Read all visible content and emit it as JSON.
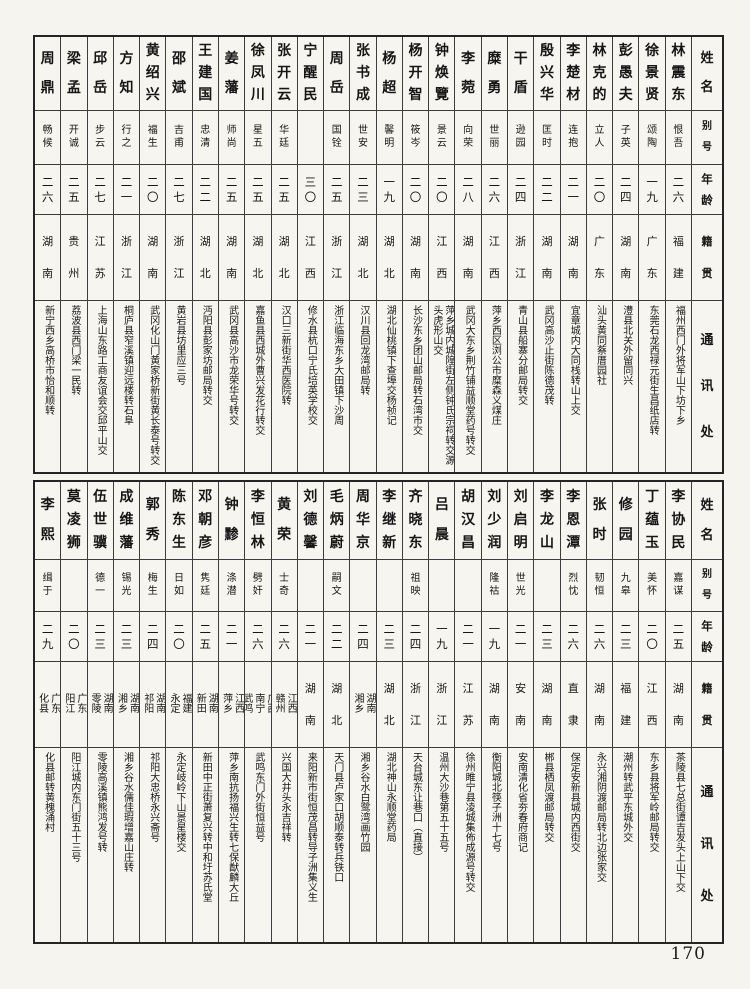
{
  "page_number": "170",
  "column_headers": [
    "姓名",
    "别号",
    "年龄",
    "籍贯",
    "通讯处"
  ],
  "tables": {
    "top": {
      "entries": [
        {
          "name": "林震东",
          "alias": "恨吾",
          "age": "二六",
          "native": "福建",
          "address": "福州西门外将军山下坊下乡"
        },
        {
          "name": "徐景贤",
          "alias": "颂陶",
          "age": "一九",
          "native": "广东",
          "address": "东莞石龙西禄元街生昌纸店转"
        },
        {
          "name": "彭愚夫",
          "alias": "子英",
          "age": "二四",
          "native": "湖南",
          "address": "澧县北关外留同兴"
        },
        {
          "name": "林克的",
          "alias": "立人",
          "age": "二〇",
          "native": "广东",
          "address": "汕头黄同蔡厝园社"
        },
        {
          "name": "李楚材",
          "alias": "连抱",
          "age": "二一",
          "native": "湖南",
          "address": "宜章城内大同栈转山上交"
        },
        {
          "name": "殷兴华",
          "alias": "匡时",
          "age": "二二",
          "native": "湖南",
          "address": "武冈高沙止街陈德茂转"
        },
        {
          "name": "干盾",
          "alias": "逊园",
          "age": "二四",
          "native": "浙江",
          "address": "青山县船寨分邮局转交"
        },
        {
          "name": "糜勇",
          "alias": "世丽",
          "age": "二六",
          "native": "江西",
          "address": "萍乡西区浏公市糜森义煤庄"
        },
        {
          "name": "李菀",
          "alias": "向荣",
          "age": "二八",
          "native": "湖南",
          "address": "武冈大东乡荆竹铺益顺堂药号转交"
        },
        {
          "name": "钟焕覽",
          "alias": "景云",
          "age": "二〇",
          "native": "江西",
          "address": "萍乡城内城隍街左侧钟氏宗祠转交源头虎形山交"
        },
        {
          "name": "杨开智",
          "alias": "筱岑",
          "age": "二〇",
          "native": "湖南",
          "address": "长沙东乡团山邮局转石湾市交"
        },
        {
          "name": "杨超",
          "alias": "馨明",
          "age": "一九",
          "native": "湖北",
          "address": "湖北仙桃镇下查埠交杨祯记"
        },
        {
          "name": "张书成",
          "alias": "世安",
          "age": "二三",
          "native": "湖北",
          "address": "汉川县回龙湾邮局转"
        },
        {
          "name": "周岳",
          "alias": "国铨",
          "age": "二五",
          "native": "浙江",
          "address": "浙江临海东乡大田镇下沙周"
        },
        {
          "name": "宁醒民",
          "alias": "",
          "age": "三〇",
          "native": "江西",
          "address": "修水县杭口宁氏培英学校交"
        },
        {
          "name": "张开云",
          "alias": "华廷",
          "age": "二五",
          "native": "湖北",
          "address": "汉口三新街华西医院转"
        },
        {
          "name": "徐凤川",
          "alias": "星五",
          "age": "二五",
          "native": "湖北",
          "address": "嘉鱼县西城外曹兴发花行转交"
        },
        {
          "name": "姜藩",
          "alias": "师尚",
          "age": "二五",
          "native": "湖南",
          "address": "武冈县高沙市龙荣华号转交"
        },
        {
          "name": "王建国",
          "alias": "忠清",
          "age": "二二",
          "native": "湖北",
          "address": "沔阳县彭家坊邮局转交"
        },
        {
          "name": "邵斌",
          "alias": "吉甫",
          "age": "二七",
          "native": "浙江",
          "address": "黄岩县坊里应三号"
        },
        {
          "name": "黄绍兴",
          "alias": "福生",
          "age": "二〇",
          "native": "湖南",
          "address": "武冈化山门黄家桥新街黄长泰号转交"
        },
        {
          "name": "方知",
          "alias": "行之",
          "age": "二一",
          "native": "浙江",
          "address": "桐庐县窄溪镇迎远楼转石阜"
        },
        {
          "name": "邱岳",
          "alias": "步云",
          "age": "二七",
          "native": "江苏",
          "address": "上海山东路工商友谊会交邱平山交"
        },
        {
          "name": "梁孟",
          "alias": "开诚",
          "age": "二五",
          "native": "贵州",
          "address": "荔波县西门梁一民转"
        },
        {
          "name": "周鼎",
          "alias": "畅候",
          "age": "二六",
          "native": "湖南",
          "address": "新宁西乡高桥市怡和顺转"
        }
      ]
    },
    "bottom": {
      "entries": [
        {
          "name": "李协民",
          "alias": "嘉谋",
          "age": "二五",
          "native": "湖南",
          "address": "茶陵县七总街谭吉发头上山下交"
        },
        {
          "name": "丁蕴玉",
          "alias": "美怀",
          "age": "二〇",
          "native": "江西",
          "address": "东乡县将军岭邮局转交"
        },
        {
          "name": "修园",
          "alias": "九皋",
          "age": "二三",
          "native": "福建",
          "address": "潮州转武平东城外交"
        },
        {
          "name": "张时",
          "alias": "韧恒",
          "age": "二六",
          "native": "湖南",
          "address": "永兴湘阴渡邮局转北边张家交"
        },
        {
          "name": "李恩潭",
          "alias": "烈忱",
          "age": "二六",
          "native": "直隶",
          "address": "保定安新县城内西街交"
        },
        {
          "name": "李龙山",
          "alias": "",
          "age": "二三",
          "native": "湖南",
          "address": "郴县栖凤渡邮局转交"
        },
        {
          "name": "刘启明",
          "alias": "世光",
          "age": "二一",
          "native": "安南",
          "address": "安南清化省夯春府商记"
        },
        {
          "name": "刘少润",
          "alias": "隆祜",
          "age": "一九",
          "native": "湖南",
          "address": "衡阳城北筷子洲十七号"
        },
        {
          "name": "胡汉昌",
          "alias": "",
          "age": "二一",
          "native": "江苏",
          "address": "徐州睢宁县凌城集佈成源号转交"
        },
        {
          "name": "吕晨",
          "alias": "",
          "age": "一九",
          "native": "浙江",
          "address": "温州大沙巷第五十五号"
        },
        {
          "name": "齐晓东",
          "alias": "祖映",
          "age": "二四",
          "native": "浙江",
          "address": "天台城东让巷口（直接）"
        },
        {
          "name": "李继新",
          "alias": "",
          "age": "二三",
          "native": "湖北",
          "address": "湖北神山永顺堂药局"
        },
        {
          "name": "周华京",
          "alias": "",
          "age": "二四",
          "native": "湖南湘乡",
          "address": "湘乡谷水白鹭湾画竹园"
        },
        {
          "name": "毛炳蔚",
          "alias": "嗣文",
          "age": "二二",
          "native": "湖北",
          "address": "天门县卢家口胡顺泰转兵铁口"
        },
        {
          "name": "刘德馨",
          "alias": "",
          "age": "二一",
          "native": "湖南",
          "address": "来阳新市街恒茂昌转导子洲集义生"
        },
        {
          "name": "黄荣",
          "alias": "士奇",
          "age": "二六",
          "native": "江西赣州",
          "address": "兴国大井头永吉祥转"
        },
        {
          "name": "李恒林",
          "alias": "劈奸",
          "age": "二六",
          "native": "广西南宁武鸣",
          "address": "武鸣东门外街恒益号"
        },
        {
          "name": "钟黪",
          "alias": "涤潜",
          "age": "二一",
          "native": "江西萍乡",
          "address": "萍乡南抗扬福兴生转七保猷麟大丘"
        },
        {
          "name": "邓朝彦",
          "alias": "隽廷",
          "age": "二五",
          "native": "湖南新田",
          "address": "新田中正街萧复兴转中和圩苏氏堂"
        },
        {
          "name": "陈东生",
          "alias": "日如",
          "age": "二〇",
          "native": "福建永定",
          "address": "永定岐岭下山景星楼交"
        },
        {
          "name": "郭秀",
          "alias": "梅生",
          "age": "二四",
          "native": "湖南祁阳",
          "address": "祁阳大忠桥永兴斋号"
        },
        {
          "name": "成维藩",
          "alias": "锡光",
          "age": "二三",
          "native": "湖南湘乡",
          "address": "湘乡谷水儒佳瑕增嘉山庄转"
        },
        {
          "name": "伍世骥",
          "alias": "德一",
          "age": "二三",
          "native": "湖南零陵",
          "address": "零陵高溪镇熊鸿发号转"
        },
        {
          "name": "莫凌狮",
          "alias": "",
          "age": "二〇",
          "native": "广东阳江",
          "address": "阳江城内东门街五十三号"
        },
        {
          "name": "李熙",
          "alias": "缉于",
          "age": "二九",
          "native": "广东化县",
          "address": "化县邮转黄槐涌村"
        }
      ]
    }
  }
}
